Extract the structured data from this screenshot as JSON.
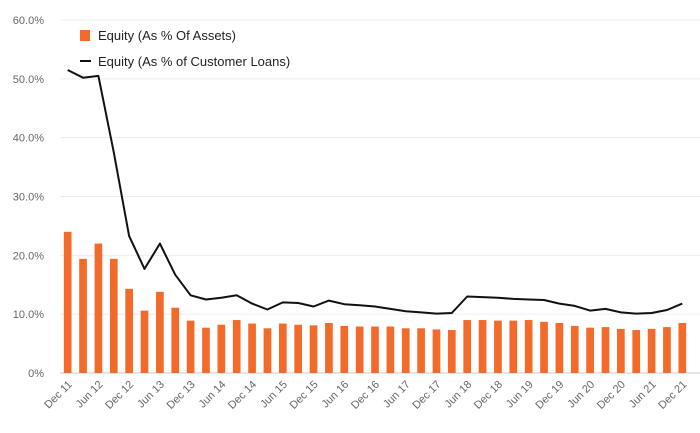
{
  "chart_data": {
    "type": "bar",
    "title": "",
    "xlabel": "",
    "ylabel": "",
    "ylim": [
      0,
      60
    ],
    "y_ticks": [
      "0%",
      "10.0%",
      "20.0%",
      "30.0%",
      "40.0%",
      "50.0%",
      "60.0%"
    ],
    "grid": true,
    "legend_position": "top-left",
    "x_tick_labels": [
      "Dec 11",
      "Jun 12",
      "Dec 12",
      "Jun 13",
      "Dec 13",
      "Jun 14",
      "Dec 14",
      "Jun 15",
      "Dec 15",
      "Jun 16",
      "Dec 16",
      "Jun 17",
      "Dec 17",
      "Jun 18",
      "Dec 18",
      "Jun 19",
      "Dec 19",
      "Jun 20",
      "Dec 20",
      "Jun 21",
      "Dec 21"
    ],
    "series": [
      {
        "name": "Equity (As % Of Assets)",
        "type": "bar",
        "color": "#f26b2a",
        "values": [
          24.0,
          19.4,
          22.0,
          19.4,
          14.3,
          10.6,
          13.8,
          11.1,
          8.9,
          7.7,
          8.2,
          9.0,
          8.4,
          7.6,
          8.4,
          8.2,
          8.1,
          8.5,
          8.0,
          7.9,
          7.9,
          7.9,
          7.6,
          7.6,
          7.4,
          7.3,
          9.0,
          9.0,
          8.9,
          8.9,
          9.0,
          8.7,
          8.5,
          8.0,
          7.7,
          7.8,
          7.5,
          7.3,
          7.5,
          7.8,
          8.5
        ]
      },
      {
        "name": "Equity (As % of Customer Loans)",
        "type": "line",
        "color": "#111111",
        "values": [
          51.5,
          50.2,
          50.5,
          37.5,
          23.3,
          17.7,
          22.0,
          16.7,
          13.2,
          12.5,
          12.8,
          13.2,
          11.8,
          10.8,
          12.0,
          11.9,
          11.3,
          12.3,
          11.7,
          11.5,
          11.3,
          10.9,
          10.5,
          10.3,
          10.1,
          10.2,
          13.0,
          12.9,
          12.8,
          12.6,
          12.5,
          12.4,
          11.8,
          11.4,
          10.6,
          10.9,
          10.3,
          10.1,
          10.2,
          10.7,
          11.8
        ]
      }
    ]
  },
  "legend": {
    "bar_label": "Equity (As % Of Assets)",
    "line_label": "Equity (As % of Customer Loans)"
  }
}
